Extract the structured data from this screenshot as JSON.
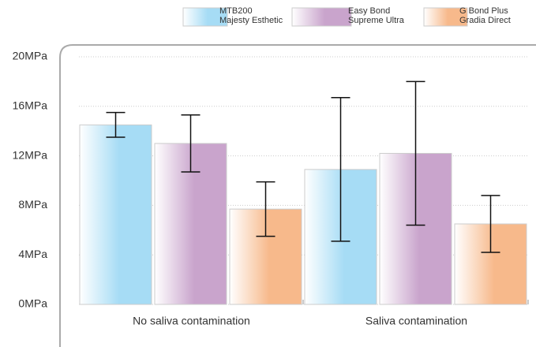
{
  "chart_data": {
    "type": "bar",
    "categories": [
      "No saliva contamination",
      "Saliva contamination"
    ],
    "series": [
      {
        "name": "MTB200\nMajesty Esthetic",
        "color": "#a6dcf5",
        "values": [
          14.5,
          10.9
        ],
        "errors": [
          1.0,
          5.8
        ]
      },
      {
        "name": "Easy Bond\nSupreme Ultra",
        "color": "#c9a4cc",
        "values": [
          13.0,
          12.2
        ],
        "errors": [
          2.3,
          5.8
        ]
      },
      {
        "name": "G Bond Plus\nGradia Direct",
        "color": "#f7b98b",
        "values": [
          7.7,
          6.5
        ],
        "errors": [
          2.2,
          2.3
        ]
      }
    ],
    "ylim": [
      0,
      20
    ],
    "yticks": [
      {
        "value": 0,
        "label": "0MPa"
      },
      {
        "value": 4,
        "label": "4MPa"
      },
      {
        "value": 8,
        "label": "8MPa"
      },
      {
        "value": 12,
        "label": "12MPa"
      },
      {
        "value": 16,
        "label": "16MPa"
      },
      {
        "value": 20,
        "label": "20MPa"
      }
    ],
    "grid": true,
    "legend": "top"
  }
}
